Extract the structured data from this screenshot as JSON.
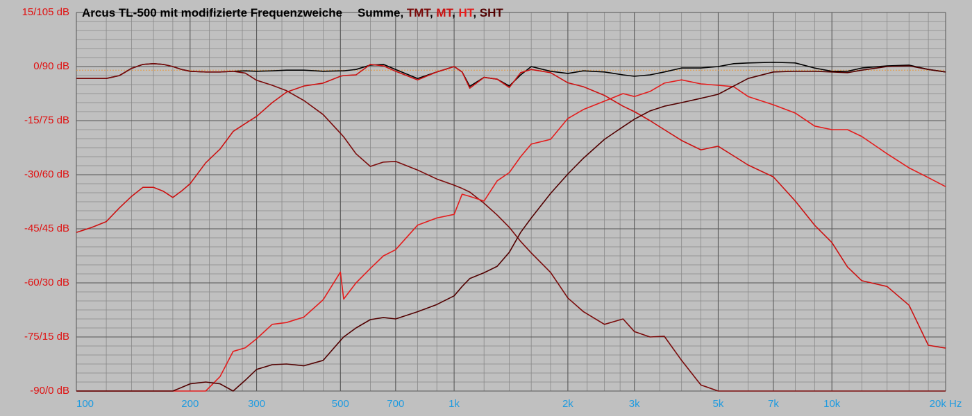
{
  "chart_data": {
    "type": "line",
    "title": "Arcus TL-500 mit modifizierte Frequenzweiche",
    "legend_separator": ", ",
    "log_x": true,
    "grid": true,
    "xlim": [
      100,
      20000
    ],
    "ylim": [
      -90,
      15
    ],
    "xticks": [
      100,
      200,
      300,
      500,
      700,
      {
        "value": 1000,
        "label": "1k"
      },
      {
        "value": 2000,
        "label": "2k"
      },
      {
        "value": 3000,
        "label": "3k"
      },
      {
        "value": 5000,
        "label": "5k"
      },
      {
        "value": 7000,
        "label": "7k"
      },
      {
        "value": 10000,
        "label": "10k"
      },
      {
        "value": 20000,
        "label": "20k Hz"
      }
    ],
    "yticks": [
      {
        "value": 15,
        "label": "15/105 dB"
      },
      {
        "value": 0,
        "label": "0/90 dB"
      },
      {
        "value": -15,
        "label": "-15/75 dB"
      },
      {
        "value": -30,
        "label": "-30/60 dB"
      },
      {
        "value": -45,
        "label": "-45/45 dB"
      },
      {
        "value": -60,
        "label": "-60/30 dB"
      },
      {
        "value": -75,
        "label": "-75/15 dB"
      },
      {
        "value": -90,
        "label": "-90/0 dB"
      }
    ],
    "x_minor_grid": [
      100,
      120,
      140,
      160,
      180,
      200,
      225,
      250,
      275,
      300,
      350,
      400,
      450,
      500,
      600,
      700,
      800,
      900,
      1000,
      1200,
      1400,
      1600,
      1800,
      2000,
      2250,
      2500,
      2750,
      3000,
      3500,
      4000,
      4500,
      5000,
      6000,
      7000,
      8000,
      9000,
      10000,
      12000,
      14000,
      16000,
      18000,
      20000
    ],
    "y_minor_grid": [
      -90,
      -87.5,
      -85,
      -82.5,
      -80,
      -77.5,
      -75,
      -72.5,
      -70,
      -67.5,
      -65,
      -62.5,
      -60,
      -57.5,
      -55,
      -52.5,
      -50,
      -47.5,
      -45,
      -42.5,
      -40,
      -37.5,
      -35,
      -32.5,
      -30,
      -27.5,
      -25,
      -22.5,
      -20,
      -17.5,
      -15,
      -12.5,
      -10,
      -7.5,
      -5,
      -2.5,
      0,
      2.5,
      5,
      7.5,
      10,
      12.5,
      15
    ],
    "reference_line": {
      "value": -1,
      "color": "#e89a40"
    },
    "x": [
      100,
      110,
      120,
      130,
      140,
      150,
      160,
      170,
      180,
      190,
      200,
      220,
      240,
      260,
      280,
      300,
      330,
      360,
      400,
      450,
      500,
      510,
      550,
      600,
      650,
      700,
      800,
      900,
      1000,
      1050,
      1100,
      1200,
      1300,
      1400,
      1500,
      1600,
      1800,
      2000,
      2200,
      2500,
      2800,
      3000,
      3300,
      3600,
      4000,
      4500,
      5000,
      5500,
      6000,
      7000,
      8000,
      9000,
      10000,
      11000,
      12000,
      14000,
      16000,
      18000,
      20000
    ],
    "series": [
      {
        "name": "Summe",
        "color": "#000000",
        "values": [
          -3.3,
          -3.3,
          -3.3,
          -2.5,
          -0.5,
          0.6,
          0.8,
          0.6,
          0,
          -0.8,
          -1.3,
          -1.5,
          -1.5,
          -1.3,
          -1.2,
          -1.3,
          -1.2,
          -1,
          -1,
          -1.3,
          -1.2,
          -1.2,
          -0.8,
          0.4,
          0.6,
          -0.8,
          -3.3,
          -1.5,
          0,
          -1.5,
          -5.5,
          -3,
          -3.5,
          -5.4,
          -2.3,
          0,
          -1.3,
          -1.9,
          -1.2,
          -1.5,
          -2.3,
          -2.7,
          -2.3,
          -1.5,
          -0.4,
          -0.4,
          0,
          0.8,
          1,
          1.2,
          1,
          -0.4,
          -1.3,
          -1.3,
          -0.4,
          0.2,
          0.4,
          -0.8,
          -1.5
        ]
      },
      {
        "name": "TMT",
        "color": "#7a0a0a",
        "values": [
          -3.3,
          -3.3,
          -3.3,
          -2.5,
          -0.5,
          0.6,
          0.8,
          0.6,
          0,
          -0.8,
          -1.3,
          -1.5,
          -1.5,
          -1.3,
          -1.8,
          -3.8,
          -5.2,
          -6.7,
          -9.4,
          -13.3,
          -18.5,
          -19.5,
          -24.2,
          -27.7,
          -26.5,
          -26.3,
          -28.7,
          -31.2,
          -32.9,
          -33.8,
          -34.8,
          -37.9,
          -41.2,
          -44.6,
          -48.5,
          -51.7,
          -57.1,
          -64.2,
          -68,
          -71.5,
          -70,
          -73.5,
          -75,
          -74.8,
          -81.5,
          -88.3,
          -90,
          -90,
          -90,
          -90,
          -90,
          -90,
          -90,
          -90,
          -90,
          -90,
          -90,
          -90,
          -90
        ]
      },
      {
        "name": "MT",
        "color": "#cc1010",
        "values": [
          -46,
          -44.6,
          -43,
          -39.2,
          -36,
          -33.5,
          -33.5,
          -34.6,
          -36.3,
          -34.5,
          -32.5,
          -26.7,
          -22.9,
          -18,
          -15.8,
          -13.8,
          -10,
          -7.1,
          -5.4,
          -4.6,
          -2.7,
          -2.5,
          -2.3,
          0.6,
          0.2,
          -1.3,
          -3.7,
          -1.5,
          0,
          -1.5,
          -6,
          -3,
          -3.5,
          -5.8,
          -1.7,
          -0.8,
          -1.7,
          -4.5,
          -5.6,
          -8,
          -11,
          -12.5,
          -15,
          -17.5,
          -20.5,
          -23.1,
          -22.1,
          -24.8,
          -27.3,
          -30.6,
          -37.3,
          -44,
          -48.8,
          -55.6,
          -59.4,
          -61,
          -66.2,
          -77.3,
          -78.1
        ]
      },
      {
        "name": "HT",
        "color": "#e41c1c",
        "values": [
          -90,
          -90,
          -90,
          -90,
          -90,
          -90,
          -90,
          -90,
          -90,
          -90,
          -90,
          -90,
          -86,
          -79,
          -78,
          -75.5,
          -71.5,
          -71,
          -69.5,
          -64.7,
          -57,
          -64.5,
          -60,
          -56,
          -52.5,
          -50.8,
          -44,
          -42,
          -41,
          -35.4,
          -36,
          -37.3,
          -31.7,
          -29.4,
          -25,
          -21.5,
          -20.2,
          -14.4,
          -11.9,
          -9.6,
          -7.5,
          -8.3,
          -6.9,
          -4.6,
          -3.7,
          -4.8,
          -5.2,
          -5.6,
          -8.3,
          -10.6,
          -12.9,
          -16.5,
          -17.5,
          -17.5,
          -19.4,
          -24.2,
          -28.1,
          -30.8,
          -33.3
        ]
      },
      {
        "name": "SHT",
        "color": "#520000",
        "values": [
          -90,
          -90,
          -90,
          -90,
          -90,
          -90,
          -90,
          -90,
          -90,
          -89,
          -88,
          -87.5,
          -88,
          -90,
          -87,
          -84,
          -82.7,
          -82.5,
          -83,
          -81.5,
          -76,
          -75,
          -72.5,
          -70.2,
          -69.6,
          -70,
          -68,
          -66,
          -63.6,
          -61,
          -58.8,
          -57.2,
          -55.4,
          -51.5,
          -46,
          -42,
          -35.2,
          -29.8,
          -25.4,
          -20.2,
          -16.7,
          -14.6,
          -12.3,
          -11,
          -10,
          -8.8,
          -7.7,
          -5.4,
          -3.3,
          -1.5,
          -1.3,
          -1.3,
          -1.5,
          -1.7,
          -1,
          0,
          0.2,
          -0.8,
          -1.5
        ]
      }
    ]
  }
}
